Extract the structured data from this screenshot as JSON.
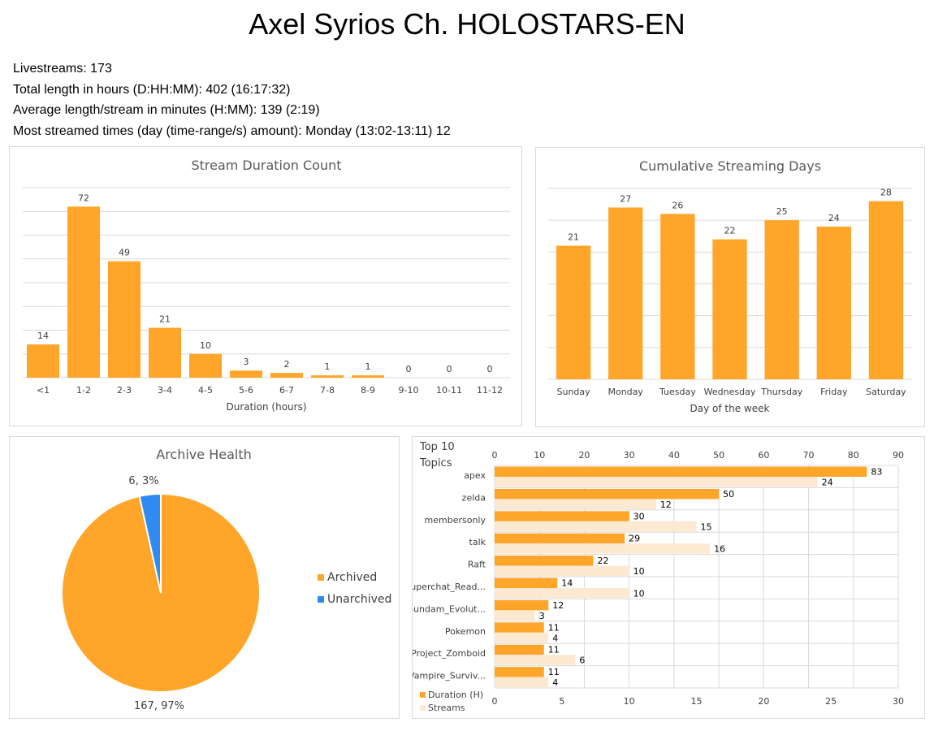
{
  "page": {
    "title": "Axel Syrios Ch. HOLOSTARS-EN",
    "stats": [
      "Livestreams: 173",
      "Total length in hours (D:HH:MM): 402 (16:17:32)",
      "Average length/stream in minutes (H:MM): 139 (2:19)",
      "Most streamed times (day (time-range/s) amount): Monday (13:02-13:11) 12"
    ]
  },
  "colors": {
    "orange": "#ffa529",
    "light_orange": "#fde9d2",
    "blue": "#2f8bf0",
    "grid": "#d9d9d9",
    "text": "#595959"
  },
  "chart_data": [
    {
      "type": "bar",
      "title": "Stream Duration Count",
      "xlabel": "Duration (hours)",
      "ylabel": "",
      "categories": [
        "<1",
        "1-2",
        "2-3",
        "3-4",
        "4-5",
        "5-6",
        "6-7",
        "7-8",
        "8-9",
        "9-10",
        "10-11",
        "11-12"
      ],
      "values": [
        14,
        72,
        49,
        21,
        10,
        3,
        2,
        1,
        1,
        0,
        0,
        0
      ],
      "ylim": [
        0,
        80
      ],
      "grid": true,
      "data_labels": true
    },
    {
      "type": "bar",
      "title": "Cumulative Streaming Days",
      "xlabel": "Day of the week",
      "ylabel": "",
      "categories": [
        "Sunday",
        "Monday",
        "Tuesday",
        "Wednesday",
        "Thursday",
        "Friday",
        "Saturday"
      ],
      "values": [
        21,
        27,
        26,
        22,
        25,
        24,
        28
      ],
      "ylim": [
        0,
        30
      ],
      "grid": true,
      "data_labels": true
    },
    {
      "type": "pie",
      "title": "Archive Health",
      "labels": [
        "Archived",
        "Unarchived"
      ],
      "values": [
        167,
        6
      ],
      "percents": [
        97,
        3
      ],
      "data_labels": [
        "167, 97%",
        "6, 3%"
      ],
      "legend": "right"
    },
    {
      "type": "bar",
      "orientation": "horizontal",
      "title": "Top 10 Topics",
      "categories": [
        "apex",
        "zelda",
        "membersonly",
        "talk",
        "Raft",
        "Superchat_Read...",
        "Gundam_Evolut...",
        "Pokemon",
        "Project_Zomboid",
        "Vampire_Surviv..."
      ],
      "series": [
        {
          "name": "Duration (H)",
          "axis": "top",
          "values": [
            83,
            50,
            30,
            29,
            22,
            14,
            12,
            11,
            11,
            11
          ]
        },
        {
          "name": "Streams",
          "axis": "bottom",
          "values": [
            24,
            12,
            15,
            16,
            10,
            10,
            3,
            4,
            6,
            4
          ]
        }
      ],
      "top_axis": {
        "range": [
          0,
          90
        ],
        "ticks": [
          0,
          10,
          20,
          30,
          40,
          50,
          60,
          70,
          80,
          90
        ]
      },
      "bottom_axis": {
        "range": [
          0,
          30
        ],
        "ticks": [
          0,
          5,
          10,
          15,
          20,
          25,
          30
        ]
      },
      "grid": true,
      "legend": "bottom-left"
    }
  ]
}
